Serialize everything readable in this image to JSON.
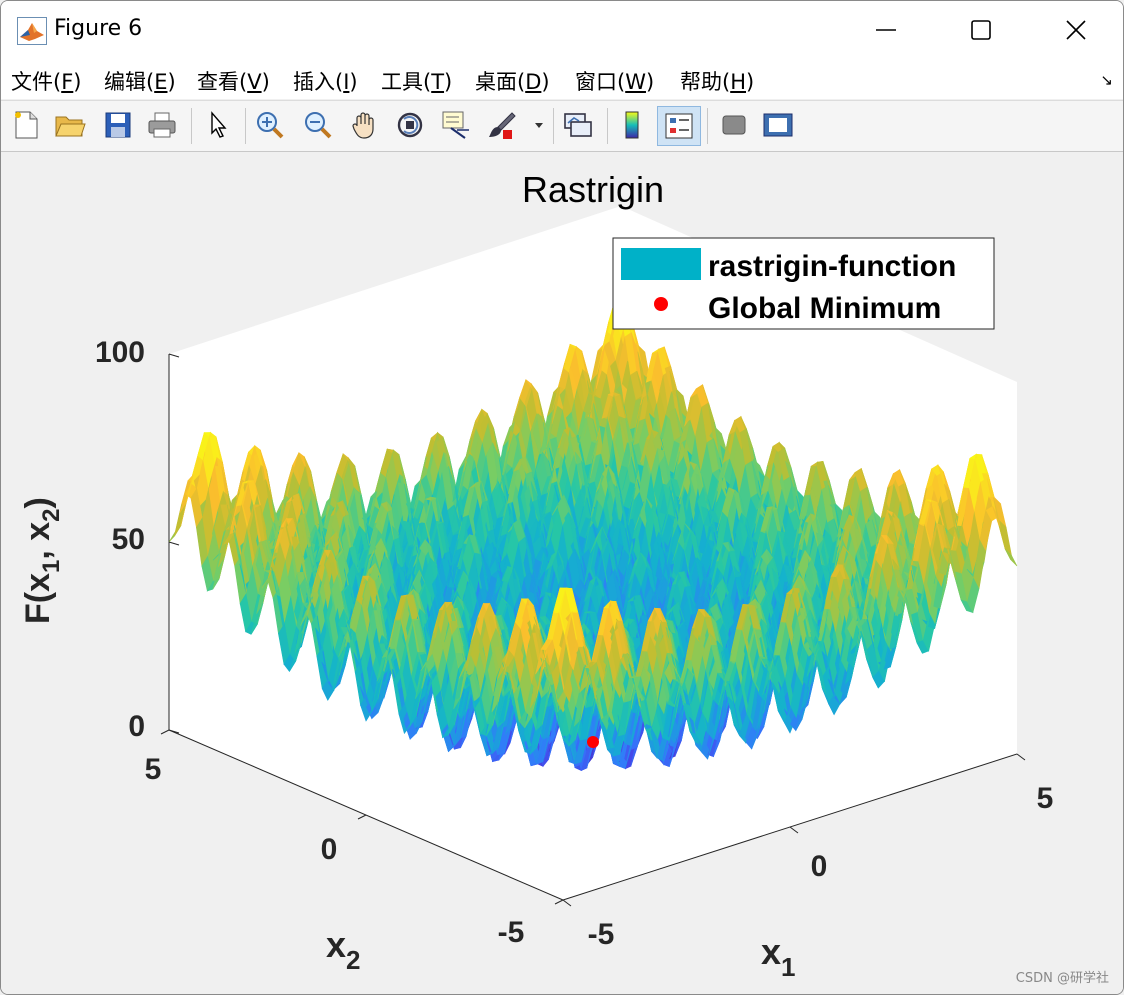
{
  "window": {
    "title": "Figure 6"
  },
  "menu": {
    "items": [
      {
        "label": "文件(",
        "key": "F",
        "close": ")"
      },
      {
        "label": "编辑(",
        "key": "E",
        "close": ")"
      },
      {
        "label": "查看(",
        "key": "V",
        "close": ")"
      },
      {
        "label": "插入(",
        "key": "I",
        "close": ")"
      },
      {
        "label": "工具(",
        "key": "T",
        "close": ")"
      },
      {
        "label": "桌面(",
        "key": "D",
        "close": ")"
      },
      {
        "label": "窗口(",
        "key": "W",
        "close": ")"
      },
      {
        "label": "帮助(",
        "key": "H",
        "close": ")"
      }
    ],
    "arrow": "↘"
  },
  "toolbar": {
    "icons": [
      "new-figure-icon",
      "open-file-icon",
      "save-icon",
      "print-icon",
      "pointer-icon",
      "zoom-in-icon",
      "zoom-out-icon",
      "pan-hand-icon",
      "rotate-3d-icon",
      "data-cursor-icon",
      "brush-icon",
      "link-plot-icon",
      "colorbar-icon",
      "legend-icon",
      "hide-plot-tools-icon",
      "show-plot-tools-icon"
    ]
  },
  "chart_data": {
    "type": "surface",
    "title": "Rastrigin",
    "function": "rastrigin",
    "x": {
      "label_base": "x",
      "label_sub": "1",
      "range": [
        -5,
        5
      ],
      "ticks": [
        "-5",
        "0",
        "5"
      ]
    },
    "y": {
      "label_base": "x",
      "label_sub": "2",
      "range": [
        -5,
        5
      ],
      "ticks": [
        "-5",
        "0",
        "5"
      ]
    },
    "z": {
      "label_pre": "F(x",
      "label_sub1": "1",
      "label_mid": ", x",
      "label_sub2": "2",
      "label_post": ")",
      "range": [
        0,
        100
      ],
      "ticks": [
        "0",
        "50",
        "100"
      ]
    },
    "colormap": "parula",
    "series": [
      {
        "name": "rastrigin-function",
        "color": "#00b1c8"
      },
      {
        "name": "Global Minimum",
        "x": 0,
        "y": 0,
        "z": 0,
        "color": "#ff0000",
        "marker": "o"
      }
    ],
    "legend_position": "top-right"
  },
  "watermark": "CSDN @研学社"
}
